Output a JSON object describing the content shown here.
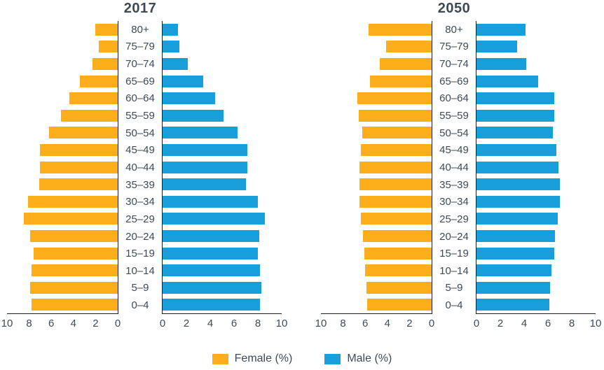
{
  "chart_data": {
    "type": "bar",
    "variant": "population-pyramid-pair",
    "age_groups": [
      "80+",
      "75–79",
      "70–74",
      "65–69",
      "60–64",
      "55–59",
      "50–54",
      "45–49",
      "40–44",
      "35–39",
      "30–34",
      "25–29",
      "20–24",
      "15–19",
      "10–14",
      "5–9",
      "0–4"
    ],
    "axis_range_each_side": [
      0,
      10
    ],
    "axis_ticks_female": [
      10,
      8,
      6,
      4,
      2,
      0
    ],
    "axis_ticks_male": [
      0,
      2,
      4,
      6,
      8,
      10
    ],
    "grid": false,
    "legend_position": "bottom-center",
    "pyramids": [
      {
        "title": "2017",
        "female": [
          2.0,
          1.7,
          2.3,
          3.4,
          4.4,
          5.1,
          6.2,
          7.0,
          7.0,
          7.1,
          8.1,
          8.5,
          7.9,
          7.6,
          7.8,
          7.9,
          7.8
        ],
        "male": [
          1.3,
          1.4,
          2.1,
          3.4,
          4.4,
          5.1,
          6.3,
          7.1,
          7.1,
          7.0,
          8.0,
          8.6,
          8.1,
          8.0,
          8.2,
          8.3,
          8.2
        ]
      },
      {
        "title": "2050",
        "female": [
          5.7,
          4.1,
          4.7,
          5.6,
          6.7,
          6.6,
          6.3,
          6.4,
          6.5,
          6.5,
          6.5,
          6.4,
          6.2,
          6.1,
          6.0,
          5.9,
          5.8
        ],
        "male": [
          4.1,
          3.4,
          4.2,
          5.2,
          6.5,
          6.5,
          6.4,
          6.7,
          6.9,
          7.0,
          7.0,
          6.8,
          6.6,
          6.5,
          6.3,
          6.2,
          6.1
        ]
      }
    ],
    "legend": [
      {
        "label": "Female (%)",
        "color": "#FBAD1A"
      },
      {
        "label": "Male (%)",
        "color": "#189FDA"
      }
    ]
  },
  "colors": {
    "female_bar": "#FBAD1A",
    "male_bar": "#189FDA",
    "axis_line": "#1C1C1C",
    "text": "#3F4A55",
    "background": "#FFFFFF"
  }
}
